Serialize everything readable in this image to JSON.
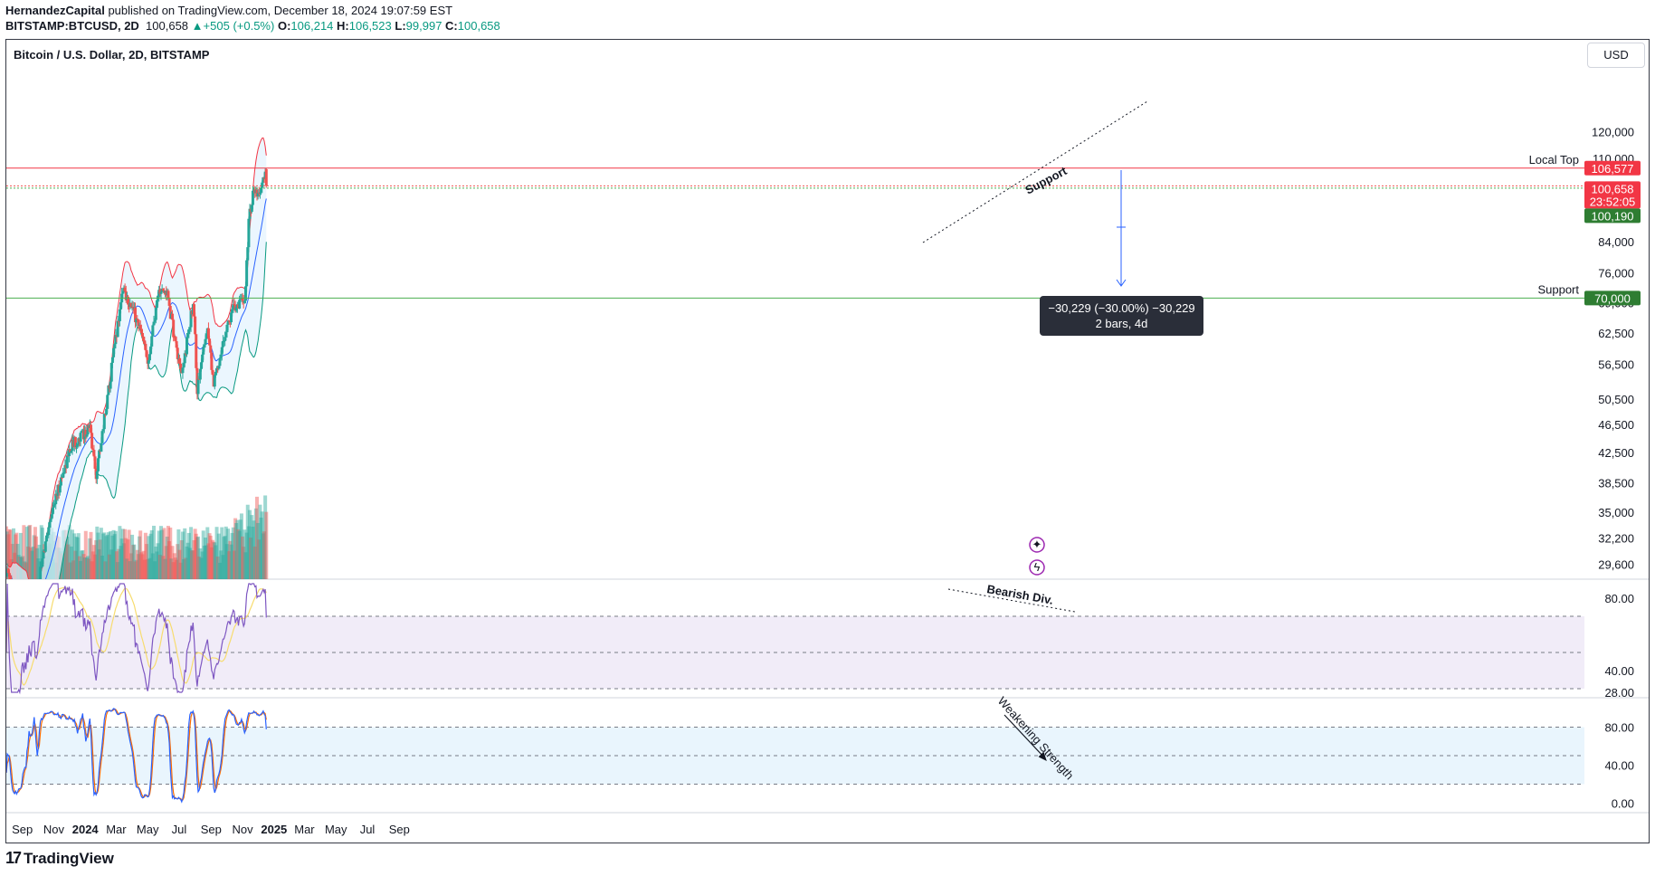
{
  "header": {
    "author": "HernandezCapital",
    "published": "published on TradingView.com, December 18, 2024 19:07:59 EST",
    "symbol": "BITSTAMP:BTCUSD, 2D",
    "last": "100,658",
    "change": "+505 (+0.5%)",
    "o_label": "O:",
    "o_value": "106,214",
    "h_label": "H:",
    "h_value": "106,523",
    "l_label": "L:",
    "l_value": "99,997",
    "c_label": "C:",
    "c_value": "100,658"
  },
  "pane_title": "Bitcoin / U.S. Dollar, 2D, BITSTAMP",
  "currency_button": "USD",
  "footer_brand": "TradingView",
  "measure_tooltip": {
    "line1": "−30,229 (−30.00%) −30,229",
    "line2": "2 bars, 4d"
  },
  "annotations": {
    "local_top": "Local Top",
    "support_level": "Support",
    "support_trend": "Support",
    "bearish_div": "Bearish Div.",
    "weakening": "Weakening Strength"
  },
  "price_tags": {
    "local_top": "106,577",
    "last_price": "100,658",
    "countdown": "23:52:05",
    "bid": "100,190",
    "support": "70,000"
  },
  "colors": {
    "up": "#26a69a",
    "down": "#ef5350",
    "basis": "#2962ff",
    "upper_band": "#f23645",
    "lower_band": "#089981",
    "band_fill": "#e3f2fd",
    "rsi": "#7e57c2",
    "rsi_ma": "#f7dc6f",
    "stoch_k": "#2962ff",
    "stoch_d": "#ff6d00",
    "local_top_line": "#f23645",
    "support_line": "#4caf50"
  },
  "chart_data": [
    {
      "type": "candlestick",
      "title": "Bitcoin / U.S. Dollar, 2D, BITSTAMP",
      "scale": "log",
      "y_ticks": [
        120000,
        110000,
        100000,
        92000,
        84000,
        76000,
        69000,
        62500,
        56500,
        50500,
        46500,
        42500,
        38500,
        35000,
        32200,
        29600
      ],
      "y_tick_labels": [
        "120,000",
        "110,000",
        "",
        "",
        "84,000",
        "76,000",
        "69,000",
        "62,500",
        "56,500",
        "50,500",
        "46,500",
        "42,500",
        "38,500",
        "35,000",
        "32,200",
        "29,600"
      ],
      "x_tick_labels": [
        "Sep",
        "Nov",
        "2024",
        "Mar",
        "May",
        "Jul",
        "Sep",
        "Nov",
        "2025",
        "Mar",
        "May",
        "Jul",
        "Sep"
      ],
      "indicators": [
        "Bollinger Bands (20, 2)",
        "Volume"
      ],
      "path_waypoints": [
        {
          "date": "2023-08-01",
          "price": 29000
        },
        {
          "date": "2023-08-20",
          "price": 26200
        },
        {
          "date": "2023-10-01",
          "price": 27500
        },
        {
          "date": "2023-10-25",
          "price": 34500
        },
        {
          "date": "2023-12-05",
          "price": 43500
        },
        {
          "date": "2024-01-10",
          "price": 46000
        },
        {
          "date": "2024-01-22",
          "price": 39500
        },
        {
          "date": "2024-02-15",
          "price": 52000
        },
        {
          "date": "2024-03-14",
          "price": 72500
        },
        {
          "date": "2024-04-13",
          "price": 64500
        },
        {
          "date": "2024-05-01",
          "price": 57000
        },
        {
          "date": "2024-05-21",
          "price": 71000
        },
        {
          "date": "2024-06-07",
          "price": 71500
        },
        {
          "date": "2024-07-05",
          "price": 54000
        },
        {
          "date": "2024-07-29",
          "price": 69500
        },
        {
          "date": "2024-08-05",
          "price": 52000
        },
        {
          "date": "2024-08-25",
          "price": 64500
        },
        {
          "date": "2024-09-06",
          "price": 53000
        },
        {
          "date": "2024-10-01",
          "price": 64000
        },
        {
          "date": "2024-10-20",
          "price": 69000
        },
        {
          "date": "2024-11-05",
          "price": 68500
        },
        {
          "date": "2024-11-13",
          "price": 90000
        },
        {
          "date": "2024-11-22",
          "price": 99000
        },
        {
          "date": "2024-11-30",
          "price": 96500
        },
        {
          "date": "2024-12-17",
          "price": 106500
        },
        {
          "date": "2024-12-18",
          "price": 100658
        }
      ],
      "levels": [
        {
          "label": "Local Top",
          "value": 106577
        },
        {
          "label": "Support",
          "value": 70000
        },
        {
          "label": "Last",
          "value": 100658
        },
        {
          "label": "Bid",
          "value": 100190
        }
      ]
    },
    {
      "type": "line",
      "series": [
        "RSI",
        "RSI-based MA"
      ],
      "y_ticks": [
        80,
        40,
        28
      ],
      "y_tick_labels": [
        "80.00",
        "40.00",
        "28.00"
      ],
      "bands": {
        "upper": 70,
        "middle": 50,
        "lower": 30
      }
    },
    {
      "type": "line",
      "series": [
        "%K",
        "%D"
      ],
      "y_ticks": [
        80,
        40,
        0
      ],
      "y_tick_labels": [
        "80.00",
        "40.00",
        "0.00"
      ],
      "bands": {
        "upper": 80,
        "middle": 50,
        "lower": 20
      }
    }
  ]
}
